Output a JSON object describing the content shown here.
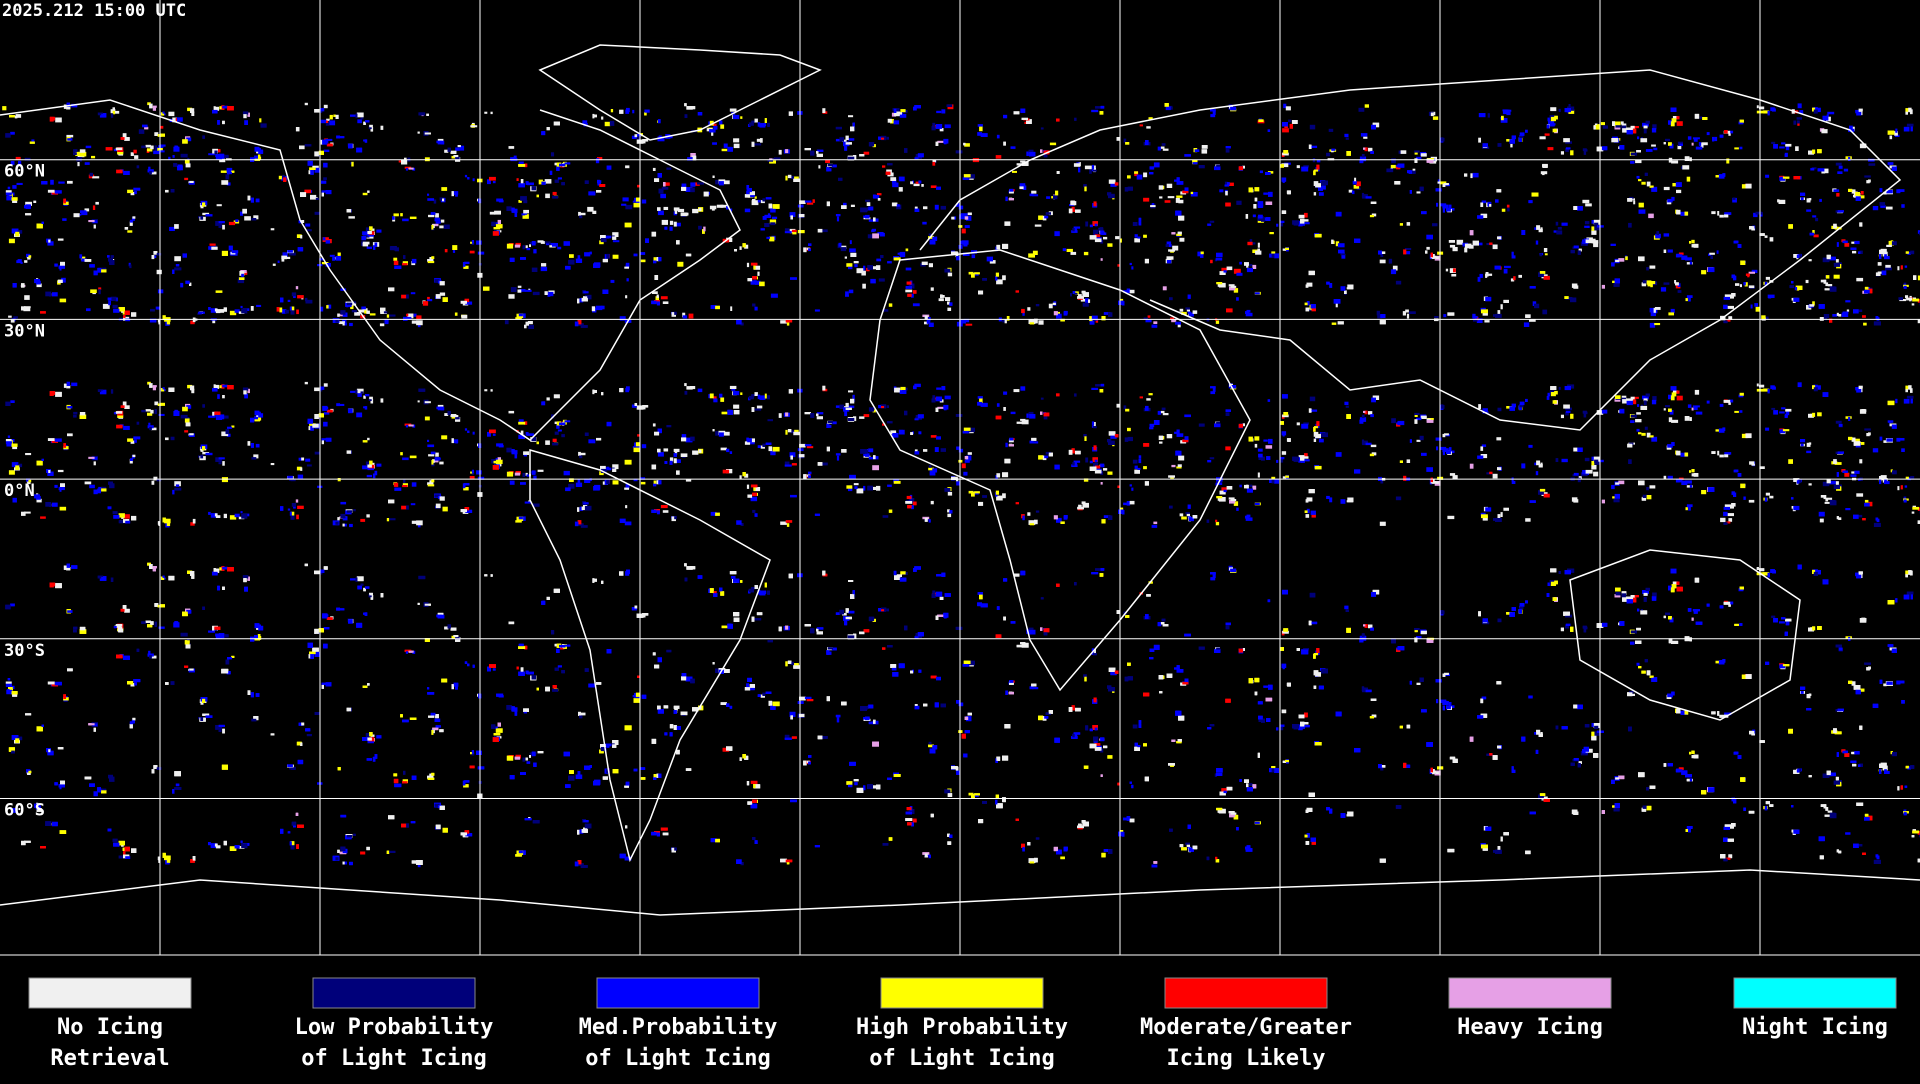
{
  "header": {
    "timestamp": "2025.212 15:00 UTC"
  },
  "grid_labels": [
    "60°N",
    "30°N",
    "0°N",
    "30°S",
    "60°S"
  ],
  "legend": [
    {
      "color": "#f0f0f0",
      "label_lines": [
        "No Icing",
        "Retrieval"
      ]
    },
    {
      "color": "#00007a",
      "label_lines": [
        "Low Probability",
        "of Light Icing"
      ]
    },
    {
      "color": "#0000ff",
      "label_lines": [
        "Med.Probability",
        "of Light Icing"
      ]
    },
    {
      "color": "#ffff00",
      "label_lines": [
        "High Probability",
        "of Light Icing"
      ]
    },
    {
      "color": "#ff0000",
      "label_lines": [
        "Moderate/Greater",
        "Icing Likely"
      ]
    },
    {
      "color": "#e6a0e6",
      "label_lines": [
        "Heavy Icing"
      ]
    },
    {
      "color": "#00ffff",
      "label_lines": [
        "Night Icing"
      ]
    }
  ]
}
